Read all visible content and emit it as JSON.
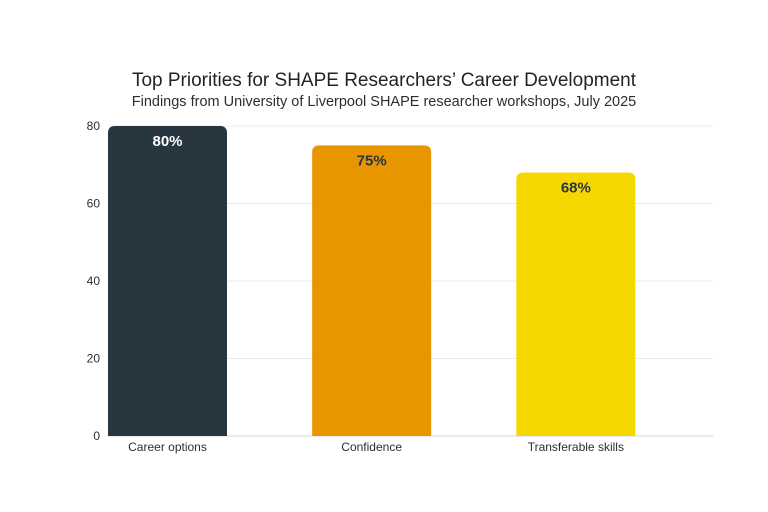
{
  "chart_data": {
    "type": "bar",
    "title": "Top Priorities for SHAPE Researchers’ Career Development",
    "subtitle": "Findings from University of Liverpool SHAPE researcher workshops, July 2025",
    "categories": [
      "Career options",
      "Confidence",
      "Transferable skills"
    ],
    "values": [
      80,
      75,
      68
    ],
    "data_labels": [
      "80%",
      "75%",
      "68%"
    ],
    "colors": [
      "#283640",
      "#e89500",
      "#f5d800"
    ],
    "label_colors": [
      "#ffffff",
      "#283640",
      "#283640"
    ],
    "ylim": [
      0,
      80
    ],
    "yticks": [
      0,
      20,
      40,
      60,
      80
    ],
    "xlabel": "",
    "ylabel": "",
    "grid": true,
    "legend": "none"
  }
}
